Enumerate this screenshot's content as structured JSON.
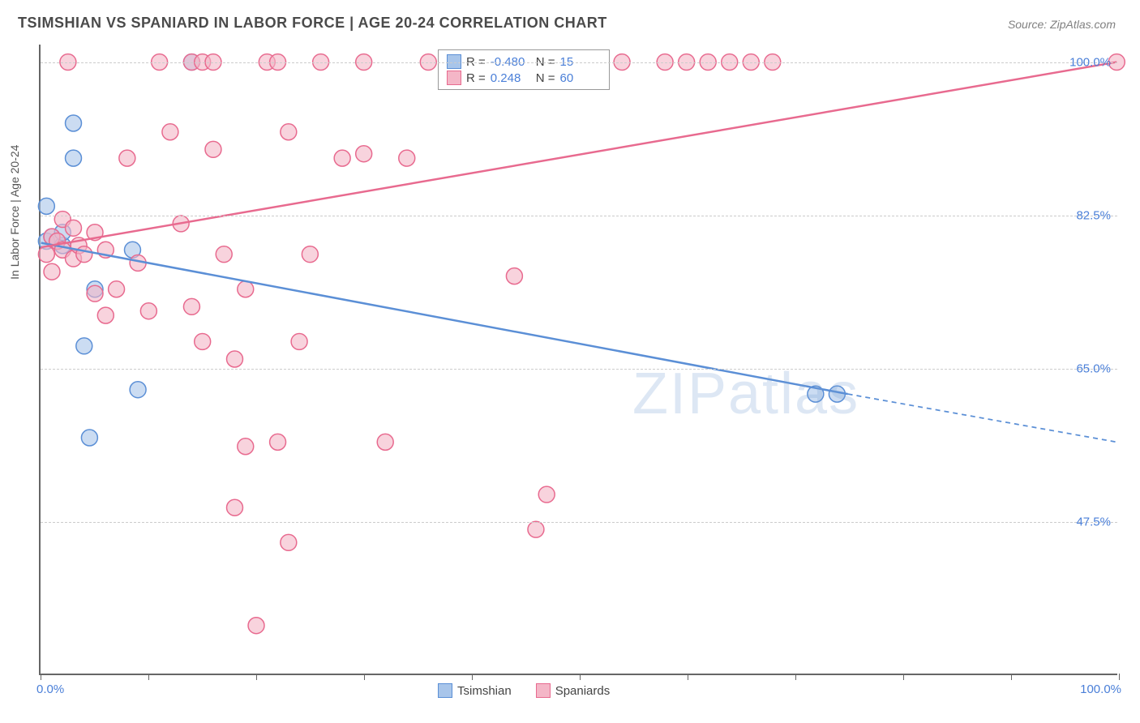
{
  "title": "TSIMSHIAN VS SPANIARD IN LABOR FORCE | AGE 20-24 CORRELATION CHART",
  "source": "Source: ZipAtlas.com",
  "watermark": "ZIPatlas",
  "y_axis_title": "In Labor Force | Age 20-24",
  "chart": {
    "type": "scatter-correlation",
    "background_color": "#ffffff",
    "axis_color": "#666666",
    "grid_color": "#cccccc",
    "grid_dash": "4,4",
    "label_color": "#4a7fd8",
    "text_color": "#555555",
    "title_color": "#4a4a4a",
    "title_fontsize": 18,
    "label_fontsize": 15,
    "axis_title_fontsize": 14,
    "xlim": [
      0,
      100
    ],
    "ylim": [
      30,
      102
    ],
    "x_min_label": "0.0%",
    "x_max_label": "100.0%",
    "x_ticks": [
      0,
      10,
      20,
      30,
      40,
      50,
      60,
      70,
      80,
      90,
      100
    ],
    "y_grid": [
      {
        "value": 47.5,
        "label": "47.5%"
      },
      {
        "value": 65.0,
        "label": "65.0%"
      },
      {
        "value": 82.5,
        "label": "82.5%"
      },
      {
        "value": 100.0,
        "label": "100.0%"
      }
    ],
    "marker_radius": 10,
    "marker_stroke_width": 1.5,
    "marker_fill_opacity": 0.25,
    "line_width": 2.5,
    "series": [
      {
        "name": "Tsimshian",
        "color_stroke": "#5b8fd6",
        "color_fill": "#a8c5ea",
        "R": "-0.480",
        "N": "15",
        "points": [
          {
            "x": 0.5,
            "y": 79.5
          },
          {
            "x": 0.5,
            "y": 83.5
          },
          {
            "x": 1.0,
            "y": 80.0
          },
          {
            "x": 2.0,
            "y": 79.0
          },
          {
            "x": 3.0,
            "y": 93.0
          },
          {
            "x": 3.0,
            "y": 89.0
          },
          {
            "x": 4.0,
            "y": 67.5
          },
          {
            "x": 4.5,
            "y": 57.0
          },
          {
            "x": 5.0,
            "y": 74.0
          },
          {
            "x": 8.5,
            "y": 78.5
          },
          {
            "x": 9.0,
            "y": 62.5
          },
          {
            "x": 14.0,
            "y": 100.0
          },
          {
            "x": 72.0,
            "y": 62.0
          },
          {
            "x": 74.0,
            "y": 62.0
          },
          {
            "x": 2.0,
            "y": 80.5
          }
        ],
        "trend": {
          "x1": 0,
          "y1": 79.3,
          "x2": 75,
          "y2": 62.0,
          "x2_ext": 100,
          "y2_ext": 56.5
        }
      },
      {
        "name": "Spaniards",
        "color_stroke": "#e86a8f",
        "color_fill": "#f4b6c7",
        "R": "0.248",
        "N": "60",
        "points": [
          {
            "x": 0.5,
            "y": 78.0
          },
          {
            "x": 1.0,
            "y": 80.0
          },
          {
            "x": 1.0,
            "y": 76.0
          },
          {
            "x": 1.5,
            "y": 79.5
          },
          {
            "x": 2.0,
            "y": 82.0
          },
          {
            "x": 2.0,
            "y": 78.5
          },
          {
            "x": 2.5,
            "y": 100.0
          },
          {
            "x": 3.0,
            "y": 81.0
          },
          {
            "x": 3.0,
            "y": 77.5
          },
          {
            "x": 3.5,
            "y": 79.0
          },
          {
            "x": 4.0,
            "y": 78.0
          },
          {
            "x": 5.0,
            "y": 73.5
          },
          {
            "x": 5.0,
            "y": 80.5
          },
          {
            "x": 6.0,
            "y": 71.0
          },
          {
            "x": 6.0,
            "y": 78.5
          },
          {
            "x": 7.0,
            "y": 74.0
          },
          {
            "x": 8.0,
            "y": 89.0
          },
          {
            "x": 9.0,
            "y": 77.0
          },
          {
            "x": 10.0,
            "y": 71.5
          },
          {
            "x": 11.0,
            "y": 100.0
          },
          {
            "x": 12.0,
            "y": 92.0
          },
          {
            "x": 13.0,
            "y": 81.5
          },
          {
            "x": 14.0,
            "y": 72.0
          },
          {
            "x": 14.0,
            "y": 100.0
          },
          {
            "x": 15.0,
            "y": 68.0
          },
          {
            "x": 15.0,
            "y": 100.0
          },
          {
            "x": 16.0,
            "y": 90.0
          },
          {
            "x": 16.0,
            "y": 100.0
          },
          {
            "x": 17.0,
            "y": 78.0
          },
          {
            "x": 18.0,
            "y": 49.0
          },
          {
            "x": 18.0,
            "y": 66.0
          },
          {
            "x": 19.0,
            "y": 56.0
          },
          {
            "x": 19.0,
            "y": 74.0
          },
          {
            "x": 20.0,
            "y": 35.5
          },
          {
            "x": 21.0,
            "y": 100.0
          },
          {
            "x": 22.0,
            "y": 56.5
          },
          {
            "x": 22.0,
            "y": 100.0
          },
          {
            "x": 23.0,
            "y": 45.0
          },
          {
            "x": 23.0,
            "y": 92.0
          },
          {
            "x": 24.0,
            "y": 68.0
          },
          {
            "x": 25.0,
            "y": 78.0
          },
          {
            "x": 26.0,
            "y": 100.0
          },
          {
            "x": 28.0,
            "y": 89.0
          },
          {
            "x": 30.0,
            "y": 89.5
          },
          {
            "x": 30.0,
            "y": 100.0
          },
          {
            "x": 32.0,
            "y": 56.5
          },
          {
            "x": 34.0,
            "y": 89.0
          },
          {
            "x": 36.0,
            "y": 100.0
          },
          {
            "x": 38.0,
            "y": 100.0
          },
          {
            "x": 44.0,
            "y": 75.5
          },
          {
            "x": 46.0,
            "y": 46.5
          },
          {
            "x": 47.0,
            "y": 50.5
          },
          {
            "x": 54.0,
            "y": 100.0
          },
          {
            "x": 58.0,
            "y": 100.0
          },
          {
            "x": 60.0,
            "y": 100.0
          },
          {
            "x": 62.0,
            "y": 100.0
          },
          {
            "x": 64.0,
            "y": 100.0
          },
          {
            "x": 66.0,
            "y": 100.0
          },
          {
            "x": 68.0,
            "y": 100.0
          },
          {
            "x": 100.0,
            "y": 100.0
          }
        ],
        "trend": {
          "x1": 0,
          "y1": 78.8,
          "x2": 100,
          "y2": 100.0
        }
      }
    ],
    "legend_top_label_R": "R =",
    "legend_top_label_N": "N =",
    "legend_bottom": [
      {
        "name": "Tsimshian",
        "stroke": "#5b8fd6",
        "fill": "#a8c5ea"
      },
      {
        "name": "Spaniards",
        "stroke": "#e86a8f",
        "fill": "#f4b6c7"
      }
    ]
  }
}
